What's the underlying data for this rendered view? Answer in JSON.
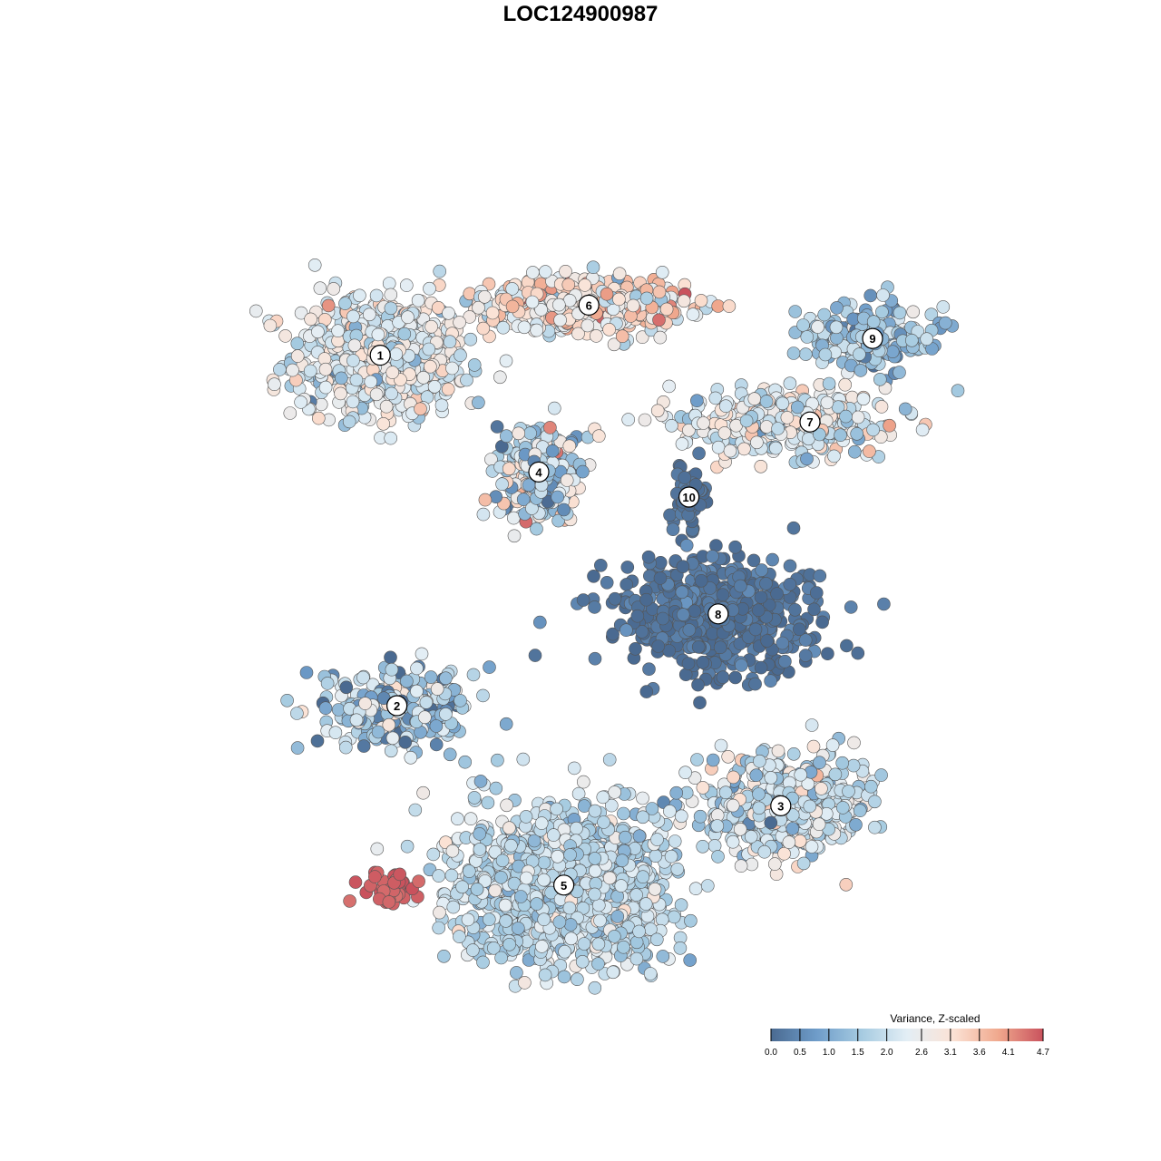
{
  "chart_data": {
    "type": "scatter",
    "title": "LOC124900987",
    "xlabel": "",
    "ylabel": "",
    "grid": false,
    "legend": {
      "title": "Variance, Z-scaled",
      "placement": "bottom-right",
      "ticks": [
        "0.0",
        "0.5",
        "1.0",
        "1.5",
        "2.0",
        "2.6",
        "3.1",
        "3.6",
        "4.1",
        "4.7"
      ],
      "min": 0.0,
      "max": 4.7
    },
    "color_scale": [
      "#4a6a91",
      "#6e9cc9",
      "#a6cbe1",
      "#e3eef5",
      "#fbe3d6",
      "#f0a98e",
      "#c9525d"
    ],
    "clusters": [
      {
        "label": "1",
        "cx": -4.8,
        "cy": 5.4,
        "sx": 2.3,
        "sy": 1.6,
        "n": 700,
        "value": 2.4,
        "spread": 0.5
      },
      {
        "label": "6",
        "cx": 0.2,
        "cy": 6.6,
        "sx": 2.6,
        "sy": 0.7,
        "n": 520,
        "value": 2.9,
        "spread": 0.7
      },
      {
        "label": "4",
        "cx": -1.0,
        "cy": 2.6,
        "sx": 1.1,
        "sy": 1.3,
        "n": 300,
        "value": 1.9,
        "spread": 0.9
      },
      {
        "label": "10",
        "cx": 2.6,
        "cy": 2.0,
        "sx": 0.4,
        "sy": 0.8,
        "n": 70,
        "value": 0.1,
        "spread": 0.1
      },
      {
        "label": "9",
        "cx": 7.0,
        "cy": 5.8,
        "sx": 1.9,
        "sy": 0.9,
        "n": 200,
        "value": 1.4,
        "spread": 0.6
      },
      {
        "label": "7",
        "cx": 4.8,
        "cy": 3.8,
        "sx": 2.9,
        "sy": 0.8,
        "n": 360,
        "value": 2.3,
        "spread": 0.6
      },
      {
        "label": "8",
        "cx": 3.3,
        "cy": -0.8,
        "sx": 2.7,
        "sy": 1.5,
        "n": 520,
        "value": 0.1,
        "spread": 0.2
      },
      {
        "label": "2",
        "cx": -4.4,
        "cy": -3.0,
        "sx": 1.9,
        "sy": 1.1,
        "n": 300,
        "value": 1.6,
        "spread": 0.8
      },
      {
        "label": "3",
        "cx": 4.8,
        "cy": -5.4,
        "sx": 2.3,
        "sy": 1.3,
        "n": 480,
        "value": 2.1,
        "spread": 0.6
      },
      {
        "label": "5",
        "cx": -0.4,
        "cy": -7.3,
        "sx": 2.9,
        "sy": 2.1,
        "n": 1200,
        "value": 1.9,
        "spread": 0.4
      },
      {
        "label": "",
        "cx": -4.5,
        "cy": -7.4,
        "sx": 0.7,
        "sy": 0.4,
        "n": 45,
        "value": 4.6,
        "spread": 0.1
      }
    ],
    "label_positions": [
      {
        "label": "1",
        "x": -4.8,
        "y": 5.4
      },
      {
        "label": "6",
        "x": 0.2,
        "y": 6.6
      },
      {
        "label": "9",
        "x": 7.0,
        "y": 5.8
      },
      {
        "label": "7",
        "x": 5.5,
        "y": 3.8
      },
      {
        "label": "4",
        "x": -1.0,
        "y": 2.6
      },
      {
        "label": "10",
        "x": 2.6,
        "y": 2.0
      },
      {
        "label": "8",
        "x": 3.3,
        "y": -0.8
      },
      {
        "label": "2",
        "x": -4.4,
        "y": -3.0
      },
      {
        "label": "3",
        "x": 4.8,
        "y": -5.4
      },
      {
        "label": "5",
        "x": -0.4,
        "y": -7.3
      }
    ],
    "xlim": [
      -10,
      10
    ],
    "ylim": [
      -11,
      10
    ]
  }
}
